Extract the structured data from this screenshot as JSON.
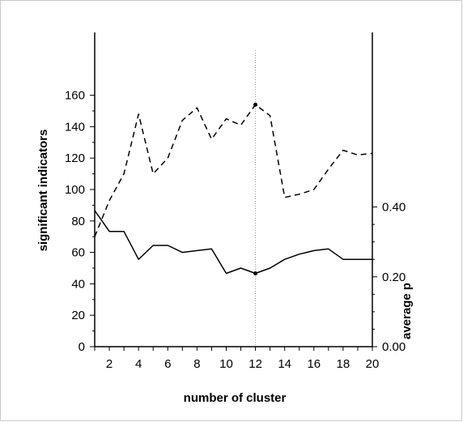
{
  "chart_data": {
    "type": "line",
    "xlabel": "number of cluster",
    "ylabel": "significant indicators",
    "y2label": "average p",
    "xlim": [
      1,
      20
    ],
    "ylim": [
      0,
      200
    ],
    "y2lim": [
      0.0,
      0.9
    ],
    "x": [
      1,
      2,
      3,
      4,
      5,
      6,
      7,
      8,
      9,
      10,
      11,
      12,
      13,
      14,
      15,
      16,
      17,
      18,
      19,
      20
    ],
    "x_ticks": [
      2,
      4,
      6,
      8,
      10,
      12,
      14,
      16,
      18,
      20
    ],
    "y_ticks": [
      0,
      20,
      40,
      60,
      80,
      100,
      120,
      140,
      160
    ],
    "y2_ticks": [
      {
        "value": 0.0,
        "label": "0.00"
      },
      {
        "value": 0.2,
        "label": "0.20"
      },
      {
        "value": 0.4,
        "label": "0.40"
      }
    ],
    "vertical_marker_x": 12,
    "series": [
      {
        "axis": "left",
        "style": "dashed",
        "values": [
          70,
          93,
          110,
          148,
          110,
          120,
          144,
          152,
          132,
          145,
          141,
          154,
          147,
          95,
          97,
          100,
          113,
          125,
          122,
          123
        ]
      },
      {
        "axis": "right",
        "style": "solid",
        "values": [
          0.39,
          0.33,
          0.33,
          0.25,
          0.29,
          0.29,
          0.27,
          0.275,
          0.28,
          0.21,
          0.225,
          0.21,
          0.225,
          0.25,
          0.265,
          0.275,
          0.28,
          0.25,
          0.25,
          0.25
        ]
      }
    ]
  }
}
